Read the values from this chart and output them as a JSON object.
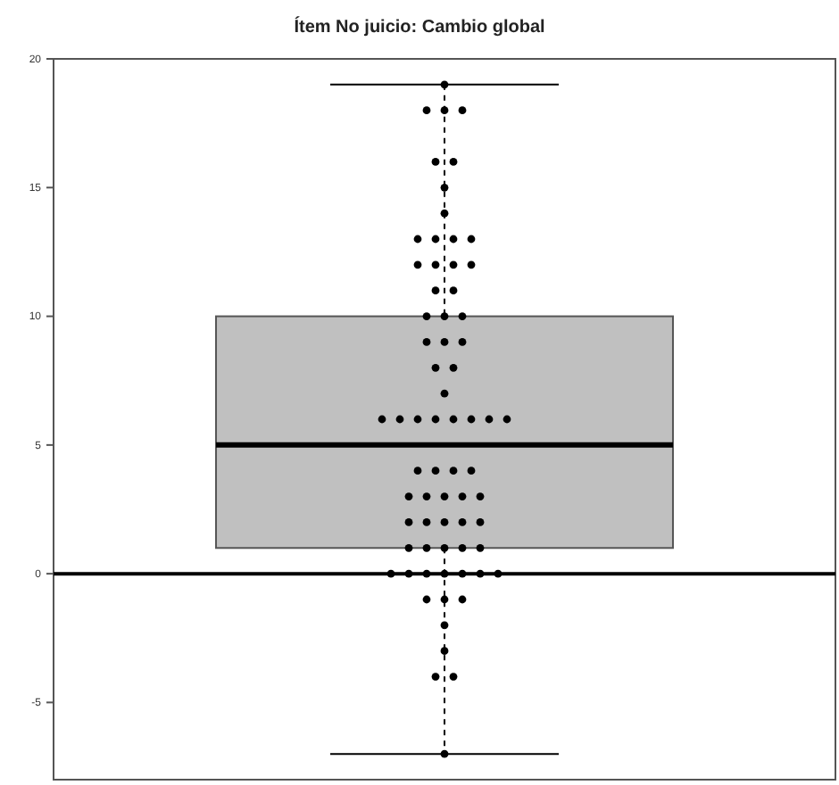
{
  "chart_data": {
    "type": "box",
    "title": "Ítem No juicio: Cambio global",
    "categories": [
      null
    ],
    "boxes": [
      {
        "low": -7,
        "q1": 1,
        "median": 5,
        "q3": 10,
        "high": 19
      }
    ],
    "color": "#c0c0c0",
    "series": [
      {
        "type": "scatter",
        "color": "#000000",
        "marker": "circle",
        "x": [
          null,
          null,
          null,
          null,
          null,
          null,
          null,
          null,
          null,
          null,
          null,
          null,
          null,
          null,
          null,
          null,
          null,
          null,
          null,
          null,
          null,
          null,
          null,
          null,
          null,
          null,
          null,
          null,
          null,
          null,
          null,
          null,
          null,
          null,
          null,
          null,
          null,
          null,
          null,
          null,
          null,
          null,
          null,
          null,
          null,
          null,
          null,
          null,
          null,
          null,
          null,
          null,
          null,
          null,
          null,
          null,
          null,
          null,
          null,
          null,
          null,
          null,
          null,
          null,
          null,
          null,
          null,
          null,
          null
        ],
        "values": [
          19,
          18,
          18,
          18,
          16,
          16,
          15,
          14,
          13,
          13,
          13,
          13,
          12,
          12,
          12,
          12,
          11,
          11,
          10,
          10,
          10,
          9,
          9,
          9,
          8,
          8,
          7,
          6,
          6,
          6,
          6,
          6,
          6,
          6,
          6,
          4,
          4,
          4,
          4,
          3,
          3,
          3,
          3,
          3,
          2,
          2,
          2,
          2,
          2,
          1,
          1,
          1,
          1,
          1,
          0,
          0,
          0,
          0,
          0,
          0,
          0,
          -1,
          -1,
          -1,
          -2,
          -3,
          -4,
          -4,
          -7
        ]
      }
    ],
    "ylim": [
      -8,
      20
    ],
    "yticks": [
      -5,
      0,
      5,
      10,
      15,
      20
    ],
    "grid": false,
    "ref_lines": [
      {
        "axis": "y",
        "value": 0,
        "color": "#000000"
      }
    ]
  }
}
